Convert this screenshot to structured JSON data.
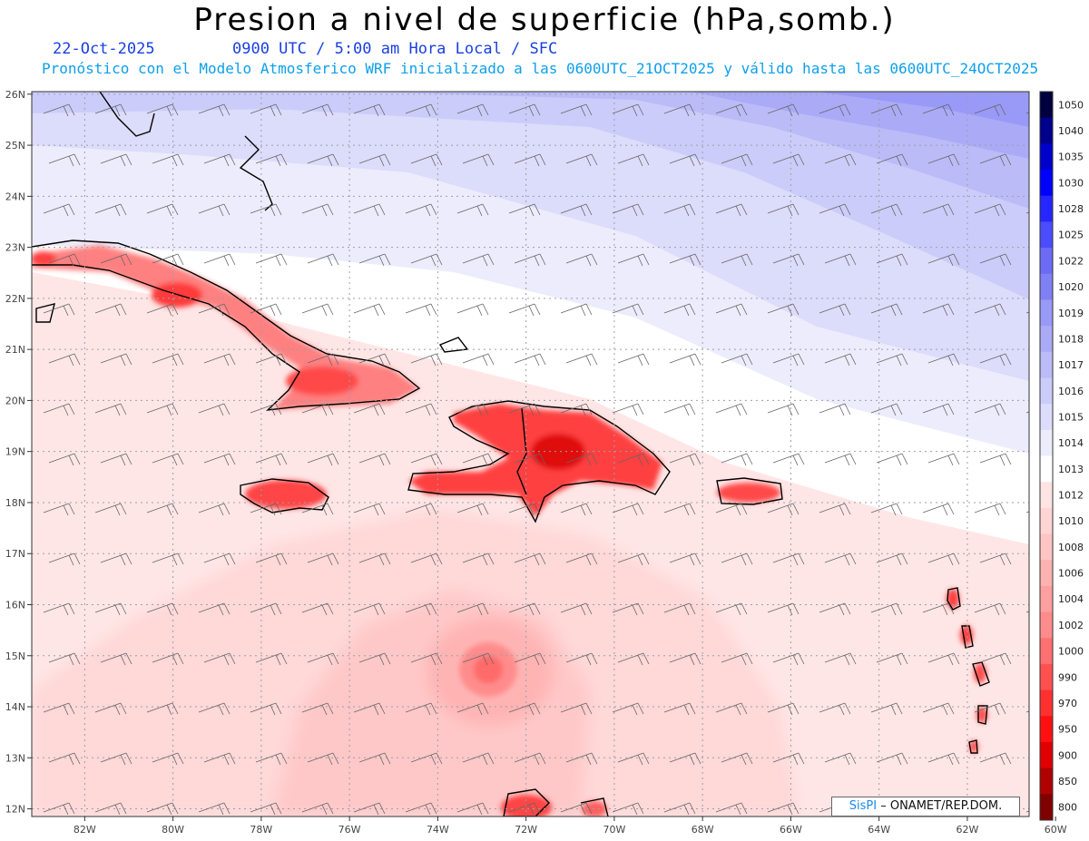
{
  "title": "Presion a nivel de superficie (hPa,somb.)",
  "date": "22-Oct-2025",
  "time_info": "0900 UTC / 5:00 am Hora Local / SFC",
  "forecast_info": "Pronóstico con el Modelo Atmosferico WRF inicializado a las 0600UTC_21OCT2025 y válido hasta las  0600UTC_24OCT2025",
  "credit": {
    "brand": "SisPI",
    "org": "ONAMET/REP.DOM."
  },
  "map": {
    "lon_range": [
      -83.2,
      -60.6
    ],
    "lat_range": [
      11.85,
      26.05
    ],
    "lat_labels": [
      "26N",
      "25N",
      "24N",
      "23N",
      "22N",
      "21N",
      "20N",
      "19N",
      "18N",
      "17N",
      "16N",
      "15N",
      "14N",
      "13N",
      "12N"
    ],
    "lon_labels": [
      "82W",
      "80W",
      "78W",
      "76W",
      "74W",
      "72W",
      "70W",
      "68W",
      "66W",
      "64W",
      "62W",
      "60W"
    ],
    "features": [
      "Cuba",
      "Jamaica",
      "Hispaniola",
      "Puerto Rico",
      "Bahamas",
      "Lesser Antilles"
    ],
    "low_pressure_center_hpa": 1000
  },
  "colorbar": {
    "levels": [
      "1050",
      "1040",
      "1035",
      "1030",
      "1028",
      "1025",
      "1022",
      "1020",
      "1019",
      "1018",
      "1017",
      "1016",
      "1015",
      "1014",
      "1013",
      "1012",
      "1010",
      "1008",
      "1006",
      "1004",
      "1002",
      "1000",
      "990",
      "970",
      "950",
      "900",
      "850",
      "800"
    ],
    "colors": [
      "#000040",
      "#00008c",
      "#0000cc",
      "#0000ff",
      "#2626ff",
      "#4c4cff",
      "#6b6bf5",
      "#8080f5",
      "#9999f7",
      "#aaaaf7",
      "#bbbbf8",
      "#ccccfa",
      "#dcdcfb",
      "#ececfc",
      "#ffffff",
      "#ffe4e4",
      "#ffd4d4",
      "#ffc4c4",
      "#ffb2b2",
      "#ffa0a0",
      "#ff8c8c",
      "#ff7070",
      "#ff5050",
      "#ff3030",
      "#ff1010",
      "#e00000",
      "#b00000",
      "#800000"
    ]
  }
}
